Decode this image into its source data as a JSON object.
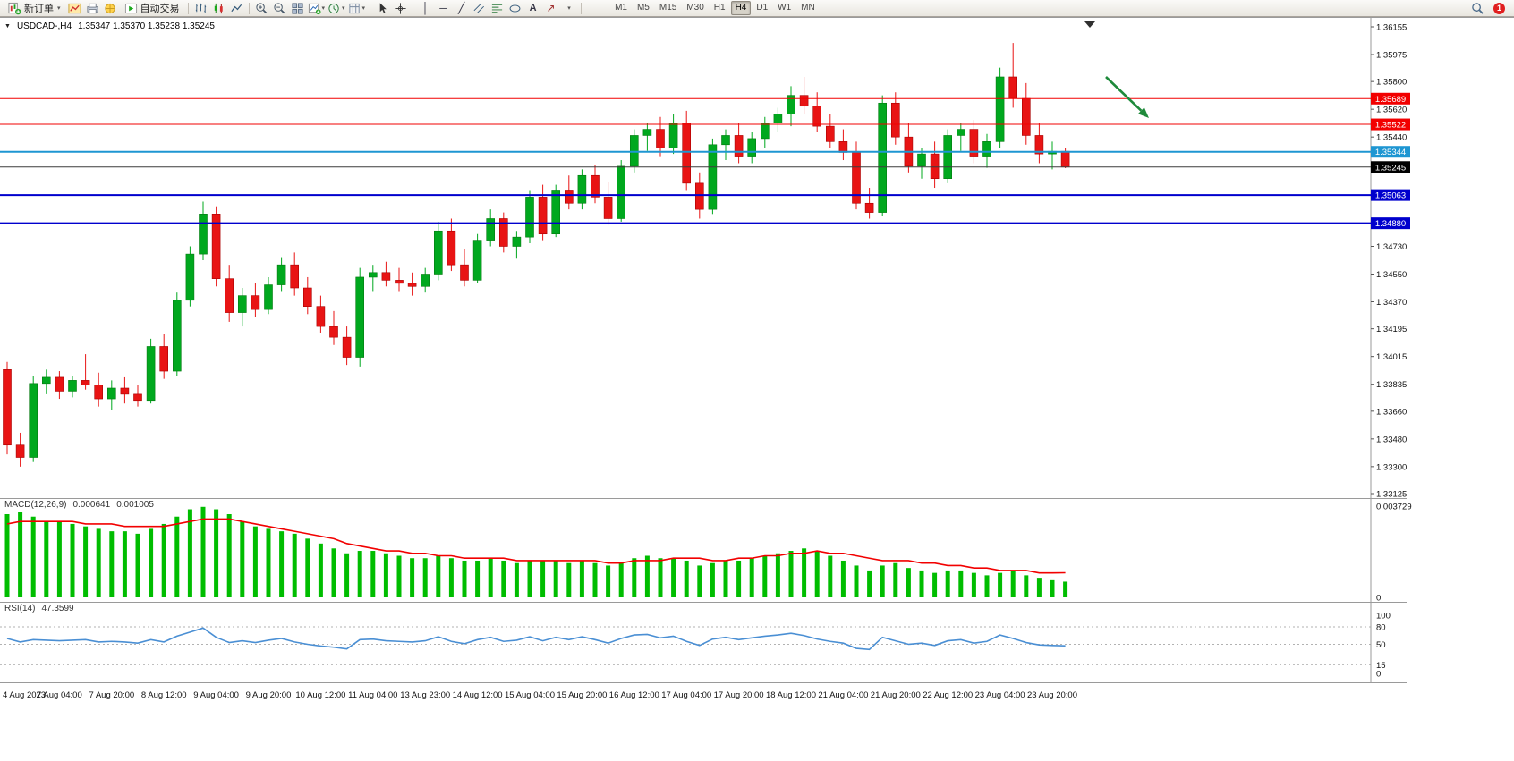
{
  "toolbar": {
    "new_order": "新订单",
    "auto_trading": "自动交易",
    "timeframes": [
      "M1",
      "M5",
      "M15",
      "M30",
      "H1",
      "H4",
      "D1",
      "W1",
      "MN"
    ],
    "active_timeframe": "H4",
    "notification_count": "1"
  },
  "chart": {
    "symbol_period": "USDCAD-,H4",
    "ohlc_text": "1.35347 1.35370 1.35238 1.35245",
    "macd_label": "MACD(12,26,9)",
    "macd_value_main": "0.000641",
    "macd_value_signal": "0.001005",
    "rsi_label": "RSI(14)",
    "rsi_value": "47.3599"
  },
  "chart_data": {
    "type": "candlestick",
    "symbol": "USDCAD-",
    "period": "H4",
    "colors": {
      "bull": "#00a81e",
      "bull_edge": "#047a10",
      "bear": "#e81414",
      "bear_edge": "#a80000",
      "background": "#ffffff"
    },
    "price_axis": {
      "min": 1.33125,
      "max": 1.36155,
      "labels": [
        "1.36155",
        "1.35975",
        "1.35800",
        "1.35620",
        "1.35440",
        "1.34730",
        "1.34550",
        "1.34370",
        "1.34195",
        "1.34015",
        "1.33835",
        "1.33660",
        "1.33480",
        "1.33300",
        "1.33125"
      ]
    },
    "time_label_step": 4,
    "time_labels": [
      "4 Aug 2023",
      "7 Aug 04:00",
      "7 Aug 20:00",
      "8 Aug 12:00",
      "9 Aug 04:00",
      "9 Aug 20:00",
      "10 Aug 12:00",
      "11 Aug 04:00",
      "13 Aug 23:00",
      "14 Aug 12:00",
      "15 Aug 04:00",
      "15 Aug 20:00",
      "16 Aug 12:00",
      "17 Aug 04:00",
      "17 Aug 20:00",
      "18 Aug 12:00",
      "21 Aug 04:00",
      "21 Aug 20:00",
      "22 Aug 12:00",
      "23 Aug 04:00",
      "23 Aug 20:00"
    ],
    "candles": [
      [
        1.3393,
        1.3398,
        1.3338,
        1.3344
      ],
      [
        1.3344,
        1.3352,
        1.333,
        1.3336
      ],
      [
        1.3336,
        1.3389,
        1.3333,
        1.3384
      ],
      [
        1.3384,
        1.3393,
        1.3377,
        1.3388
      ],
      [
        1.3388,
        1.3392,
        1.3374,
        1.3379
      ],
      [
        1.3379,
        1.3389,
        1.3375,
        1.3386
      ],
      [
        1.3386,
        1.3403,
        1.338,
        1.3383
      ],
      [
        1.3383,
        1.3391,
        1.3369,
        1.3374
      ],
      [
        1.3374,
        1.3386,
        1.3367,
        1.3381
      ],
      [
        1.3381,
        1.3388,
        1.3371,
        1.3377
      ],
      [
        1.3377,
        1.3383,
        1.3369,
        1.3373
      ],
      [
        1.3373,
        1.3413,
        1.3371,
        1.3408
      ],
      [
        1.3408,
        1.3416,
        1.3387,
        1.3392
      ],
      [
        1.3392,
        1.3443,
        1.3389,
        1.3438
      ],
      [
        1.3438,
        1.3473,
        1.3434,
        1.3468
      ],
      [
        1.3468,
        1.3502,
        1.3464,
        1.3494
      ],
      [
        1.3494,
        1.3499,
        1.3447,
        1.3452
      ],
      [
        1.3452,
        1.3461,
        1.3424,
        1.343
      ],
      [
        1.343,
        1.3446,
        1.3421,
        1.3441
      ],
      [
        1.3441,
        1.3449,
        1.3427,
        1.3432
      ],
      [
        1.3432,
        1.3453,
        1.3429,
        1.3448
      ],
      [
        1.3448,
        1.3466,
        1.3444,
        1.3461
      ],
      [
        1.3461,
        1.3469,
        1.3441,
        1.3446
      ],
      [
        1.3446,
        1.3453,
        1.3429,
        1.3434
      ],
      [
        1.3434,
        1.3441,
        1.3417,
        1.3421
      ],
      [
        1.3421,
        1.3431,
        1.3409,
        1.3414
      ],
      [
        1.3414,
        1.3421,
        1.3396,
        1.3401
      ],
      [
        1.3401,
        1.3459,
        1.3395,
        1.3453
      ],
      [
        1.3453,
        1.3461,
        1.3444,
        1.3456
      ],
      [
        1.3456,
        1.3463,
        1.3447,
        1.3451
      ],
      [
        1.3451,
        1.3459,
        1.3444,
        1.3449
      ],
      [
        1.3449,
        1.3456,
        1.3441,
        1.3447
      ],
      [
        1.3447,
        1.3459,
        1.3443,
        1.3455
      ],
      [
        1.3455,
        1.3489,
        1.3451,
        1.3483
      ],
      [
        1.3483,
        1.3491,
        1.3457,
        1.3461
      ],
      [
        1.3461,
        1.3471,
        1.3447,
        1.3451
      ],
      [
        1.3451,
        1.3481,
        1.3449,
        1.3477
      ],
      [
        1.3477,
        1.3497,
        1.3473,
        1.3491
      ],
      [
        1.3491,
        1.3495,
        1.3469,
        1.3473
      ],
      [
        1.3473,
        1.3483,
        1.3465,
        1.3479
      ],
      [
        1.3479,
        1.3509,
        1.3475,
        1.3505
      ],
      [
        1.3505,
        1.3513,
        1.3477,
        1.3481
      ],
      [
        1.3481,
        1.3513,
        1.3479,
        1.3509
      ],
      [
        1.3509,
        1.3519,
        1.3497,
        1.3501
      ],
      [
        1.3501,
        1.3523,
        1.3497,
        1.3519
      ],
      [
        1.3519,
        1.3526,
        1.3501,
        1.3505
      ],
      [
        1.3505,
        1.3515,
        1.3487,
        1.3491
      ],
      [
        1.3491,
        1.3529,
        1.3489,
        1.3525
      ],
      [
        1.3525,
        1.3549,
        1.3521,
        1.3545
      ],
      [
        1.3545,
        1.3553,
        1.3535,
        1.3549
      ],
      [
        1.3549,
        1.3557,
        1.3531,
        1.3537
      ],
      [
        1.3537,
        1.3559,
        1.3533,
        1.3553
      ],
      [
        1.3553,
        1.3561,
        1.3509,
        1.3514
      ],
      [
        1.3514,
        1.3521,
        1.3491,
        1.3497
      ],
      [
        1.3497,
        1.3543,
        1.3494,
        1.3539
      ],
      [
        1.3539,
        1.3549,
        1.3529,
        1.3545
      ],
      [
        1.3545,
        1.3553,
        1.3527,
        1.3531
      ],
      [
        1.3531,
        1.3547,
        1.3527,
        1.3543
      ],
      [
        1.3543,
        1.3557,
        1.3537,
        1.3553
      ],
      [
        1.3553,
        1.3563,
        1.3547,
        1.3559
      ],
      [
        1.3559,
        1.3577,
        1.3551,
        1.3571
      ],
      [
        1.3571,
        1.3583,
        1.3559,
        1.3564
      ],
      [
        1.3564,
        1.3573,
        1.3547,
        1.3551
      ],
      [
        1.3551,
        1.3559,
        1.3537,
        1.3541
      ],
      [
        1.3541,
        1.3549,
        1.3529,
        1.3534
      ],
      [
        1.3534,
        1.3541,
        1.3497,
        1.3501
      ],
      [
        1.3501,
        1.3511,
        1.3491,
        1.3495
      ],
      [
        1.3495,
        1.3571,
        1.3493,
        1.3566
      ],
      [
        1.3566,
        1.3573,
        1.3539,
        1.3544
      ],
      [
        1.3544,
        1.3553,
        1.3521,
        1.3525
      ],
      [
        1.3525,
        1.3537,
        1.3517,
        1.3533
      ],
      [
        1.3533,
        1.3541,
        1.3511,
        1.3517
      ],
      [
        1.3517,
        1.3549,
        1.3514,
        1.3545
      ],
      [
        1.3545,
        1.3553,
        1.3535,
        1.3549
      ],
      [
        1.3549,
        1.3555,
        1.3527,
        1.3531
      ],
      [
        1.3531,
        1.3546,
        1.3524,
        1.3541
      ],
      [
        1.3541,
        1.3589,
        1.3537,
        1.3583
      ],
      [
        1.3583,
        1.3605,
        1.3563,
        1.3569
      ],
      [
        1.3569,
        1.3579,
        1.3539,
        1.3545
      ],
      [
        1.3545,
        1.3553,
        1.3527,
        1.3533
      ],
      [
        1.3533,
        1.3541,
        1.3523,
        1.35347
      ],
      [
        1.35347,
        1.3537,
        1.35238,
        1.35245
      ]
    ],
    "hlines": [
      {
        "price": 1.35689,
        "color": "#f20000",
        "width": 1,
        "tag": "1.35689"
      },
      {
        "price": 1.35522,
        "color": "#f20000",
        "width": 1,
        "tag": "1.35522"
      },
      {
        "price": 1.35344,
        "color": "#1e96d2",
        "width": 2,
        "tag": "1.35344"
      },
      {
        "price": 1.35063,
        "color": "#0000cd",
        "width": 2,
        "tag": "1.35063"
      },
      {
        "price": 1.3488,
        "color": "#0000cd",
        "width": 2,
        "tag": "1.34880"
      }
    ],
    "current_price": {
      "price": 1.35245,
      "tag": "1.35245",
      "line_color": "#3c3c3c",
      "tag_color": "#000000"
    },
    "macd": {
      "axis_max": "0.003729",
      "axis_min": "0",
      "hist_color": "#00bd00",
      "signal_color": "#f20000",
      "hist": [
        0.0034,
        0.0035,
        0.0033,
        0.0031,
        0.0031,
        0.003,
        0.0029,
        0.0028,
        0.0027,
        0.0027,
        0.0026,
        0.0028,
        0.003,
        0.0033,
        0.0036,
        0.0037,
        0.0036,
        0.0034,
        0.0031,
        0.0029,
        0.0028,
        0.0027,
        0.0026,
        0.0024,
        0.0022,
        0.002,
        0.0018,
        0.0019,
        0.0019,
        0.0018,
        0.0017,
        0.0016,
        0.0016,
        0.0017,
        0.0016,
        0.0015,
        0.0015,
        0.0016,
        0.0015,
        0.0014,
        0.0015,
        0.0015,
        0.0015,
        0.0014,
        0.0015,
        0.0014,
        0.0013,
        0.0014,
        0.0016,
        0.0017,
        0.0016,
        0.0016,
        0.0015,
        0.0013,
        0.0014,
        0.0015,
        0.0015,
        0.0016,
        0.0017,
        0.0018,
        0.0019,
        0.002,
        0.0019,
        0.0017,
        0.0015,
        0.0013,
        0.0011,
        0.0013,
        0.0014,
        0.0012,
        0.0011,
        0.001,
        0.0011,
        0.0011,
        0.001,
        0.0009,
        0.001,
        0.0011,
        0.0009,
        0.0008,
        0.0007,
        0.000641
      ],
      "signal": [
        0.003,
        0.0031,
        0.0031,
        0.0031,
        0.0031,
        0.0031,
        0.003,
        0.003,
        0.003,
        0.0029,
        0.0029,
        0.0029,
        0.0029,
        0.003,
        0.0031,
        0.0032,
        0.0032,
        0.0032,
        0.0031,
        0.003,
        0.0029,
        0.0028,
        0.0027,
        0.0026,
        0.0025,
        0.0024,
        0.0022,
        0.0021,
        0.002,
        0.0019,
        0.0019,
        0.0018,
        0.0018,
        0.0017,
        0.0017,
        0.0016,
        0.0016,
        0.0016,
        0.0016,
        0.0015,
        0.0015,
        0.0015,
        0.0015,
        0.0015,
        0.0015,
        0.0015,
        0.0014,
        0.0014,
        0.0015,
        0.0015,
        0.0015,
        0.0016,
        0.0016,
        0.0016,
        0.0015,
        0.0015,
        0.0016,
        0.0016,
        0.0017,
        0.0017,
        0.0018,
        0.0018,
        0.0019,
        0.0018,
        0.0018,
        0.0017,
        0.0016,
        0.0015,
        0.0015,
        0.0015,
        0.0014,
        0.0014,
        0.0013,
        0.0013,
        0.0012,
        0.0012,
        0.0011,
        0.0011,
        0.0011,
        0.001,
        0.001,
        0.001005
      ]
    },
    "rsi": {
      "range": [
        0,
        100
      ],
      "levels": [
        80,
        50,
        15
      ],
      "axis_labels": [
        "100",
        "80",
        "50",
        "15",
        "0"
      ],
      "line_color": "#4a8fd4",
      "values": [
        60,
        54,
        58,
        57,
        56,
        57,
        58,
        54,
        55,
        54,
        52,
        58,
        54,
        64,
        71,
        78,
        62,
        53,
        56,
        53,
        57,
        60,
        54,
        50,
        47,
        45,
        42,
        58,
        59,
        56,
        55,
        54,
        56,
        63,
        55,
        51,
        58,
        62,
        55,
        57,
        63,
        56,
        62,
        58,
        63,
        58,
        52,
        60,
        66,
        67,
        61,
        64,
        55,
        48,
        59,
        62,
        58,
        61,
        64,
        66,
        69,
        65,
        59,
        55,
        52,
        43,
        41,
        62,
        56,
        50,
        52,
        48,
        56,
        58,
        52,
        55,
        66,
        60,
        53,
        49,
        48,
        47.36
      ]
    },
    "annotation_arrow": {
      "from": [
        1236,
        86
      ],
      "to": [
        1284,
        132
      ],
      "color": "#1f8a3b"
    }
  }
}
